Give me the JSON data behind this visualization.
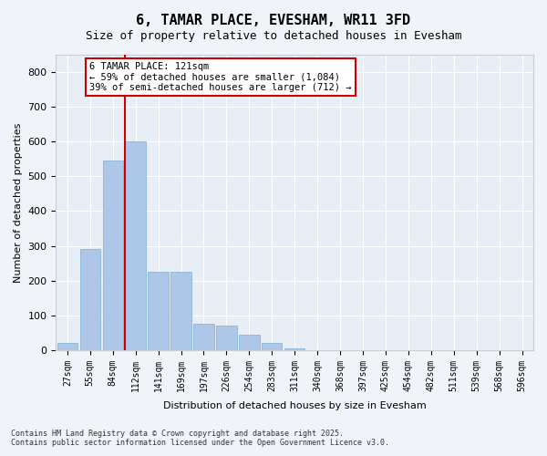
{
  "title": "6, TAMAR PLACE, EVESHAM, WR11 3FD",
  "subtitle": "Size of property relative to detached houses in Evesham",
  "xlabel": "Distribution of detached houses by size in Evesham",
  "ylabel": "Number of detached properties",
  "bar_color": "#aec6e8",
  "bar_edge_color": "#7bafd4",
  "bg_color": "#e8eef5",
  "grid_color": "#ffffff",
  "categories": [
    "27sqm",
    "55sqm",
    "84sqm",
    "112sqm",
    "141sqm",
    "169sqm",
    "197sqm",
    "226sqm",
    "254sqm",
    "283sqm",
    "311sqm",
    "340sqm",
    "368sqm",
    "397sqm",
    "425sqm",
    "454sqm",
    "482sqm",
    "511sqm",
    "539sqm",
    "568sqm",
    "596sqm"
  ],
  "values": [
    20,
    290,
    545,
    600,
    225,
    225,
    75,
    70,
    45,
    20,
    5,
    0,
    0,
    0,
    0,
    0,
    0,
    0,
    0,
    0,
    0
  ],
  "property_line_x": 3,
  "annotation_text": "6 TAMAR PLACE: 121sqm\n← 59% of detached houses are smaller (1,084)\n39% of semi-detached houses are larger (712) →",
  "annotation_box_color": "#ffffff",
  "annotation_box_edge": "#cc0000",
  "property_line_color": "#cc0000",
  "ylim": [
    0,
    850
  ],
  "yticks": [
    0,
    100,
    200,
    300,
    400,
    500,
    600,
    700,
    800
  ],
  "footer_line1": "Contains HM Land Registry data © Crown copyright and database right 2025.",
  "footer_line2": "Contains public sector information licensed under the Open Government Licence v3.0."
}
